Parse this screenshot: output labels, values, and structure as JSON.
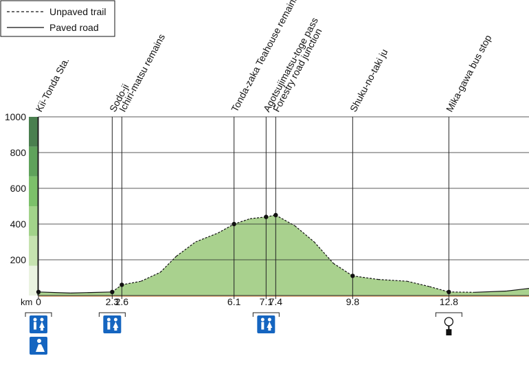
{
  "legend": {
    "unpaved_label": "Unpaved trail",
    "paved_label": "Paved road"
  },
  "colors": {
    "fill": "#a9d18e",
    "ground": "#e8b98e",
    "line": "#111111",
    "icon_blue": "#1565c0",
    "scale": [
      "#eaf3e1",
      "#c6e3b0",
      "#a2d38a",
      "#7cc06a",
      "#5fa25b",
      "#4a7f4f"
    ]
  },
  "chart_data": {
    "type": "area",
    "xlabel": "km",
    "ylabel": "",
    "ylim": [
      0,
      1000
    ],
    "xlim": [
      0,
      15.3
    ],
    "yticks": [
      1000,
      800,
      600,
      400,
      200
    ],
    "grid": true,
    "profile": [
      {
        "x": 0,
        "y": 20,
        "style": "paved"
      },
      {
        "x": 1.0,
        "y": 14,
        "style": "paved"
      },
      {
        "x": 2.3,
        "y": 20,
        "style": "paved"
      },
      {
        "x": 2.6,
        "y": 60,
        "style": "unpaved"
      },
      {
        "x": 3.2,
        "y": 80,
        "style": "unpaved"
      },
      {
        "x": 3.8,
        "y": 130,
        "style": "unpaved"
      },
      {
        "x": 4.3,
        "y": 220,
        "style": "unpaved"
      },
      {
        "x": 4.9,
        "y": 300,
        "style": "unpaved"
      },
      {
        "x": 5.6,
        "y": 350,
        "style": "unpaved"
      },
      {
        "x": 6.1,
        "y": 400,
        "style": "unpaved"
      },
      {
        "x": 6.6,
        "y": 430,
        "style": "unpaved"
      },
      {
        "x": 7.1,
        "y": 440,
        "style": "unpaved"
      },
      {
        "x": 7.4,
        "y": 450,
        "style": "unpaved"
      },
      {
        "x": 8.0,
        "y": 390,
        "style": "unpaved"
      },
      {
        "x": 8.6,
        "y": 300,
        "style": "unpaved"
      },
      {
        "x": 9.2,
        "y": 180,
        "style": "unpaved"
      },
      {
        "x": 9.8,
        "y": 110,
        "style": "unpaved"
      },
      {
        "x": 10.6,
        "y": 90,
        "style": "unpaved"
      },
      {
        "x": 11.5,
        "y": 80,
        "style": "unpaved"
      },
      {
        "x": 12.2,
        "y": 50,
        "style": "unpaved"
      },
      {
        "x": 12.8,
        "y": 20,
        "style": "unpaved"
      },
      {
        "x": 13.6,
        "y": 18,
        "style": "paved"
      },
      {
        "x": 14.6,
        "y": 25,
        "style": "paved"
      },
      {
        "x": 15.3,
        "y": 40,
        "style": "paved"
      }
    ],
    "waypoints": [
      {
        "name": "Kii-Tonda Sta.",
        "km": 0,
        "km_label": "0",
        "elev": 20,
        "icons": [
          "toilet",
          "rest"
        ]
      },
      {
        "name": "Sodo-ji",
        "km": 2.3,
        "km_label": "2.3",
        "elev": 20,
        "icons": [
          "toilet"
        ]
      },
      {
        "name": "Ichiri-matsu remains",
        "km": 2.6,
        "km_label": "2.6",
        "elev": 60,
        "icons": []
      },
      {
        "name": "Tonda-zaka Teahouse remains",
        "km": 6.1,
        "km_label": "6.1",
        "elev": 400,
        "icons": []
      },
      {
        "name": "Agotsujimatsu-toge pass",
        "km": 7.1,
        "km_label": "7.1",
        "elev": 440,
        "icons": [
          "toilet"
        ]
      },
      {
        "name": "Forestry road junction",
        "km": 7.4,
        "km_label": "7.4",
        "elev": 450,
        "icons": []
      },
      {
        "name": "Shuku-no-taki ju",
        "km": 9.8,
        "km_label": "9.8",
        "elev": 110,
        "icons": []
      },
      {
        "name": "Mika-gawa bus stop",
        "km": 12.8,
        "km_label": "12.8",
        "elev": 20,
        "icons": [
          "bus"
        ]
      }
    ]
  }
}
